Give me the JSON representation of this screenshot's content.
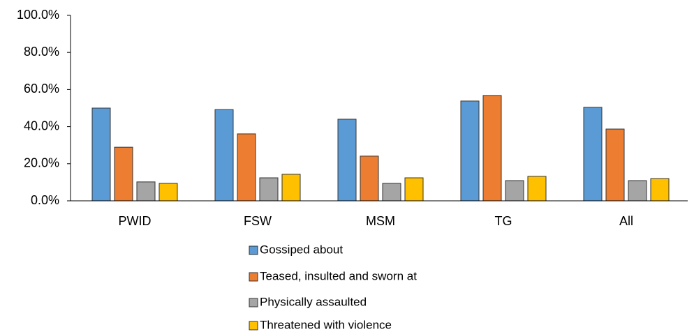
{
  "chart_data": {
    "type": "bar",
    "categories": [
      "PWID",
      "FSW",
      "MSM",
      "TG",
      "All"
    ],
    "series": [
      {
        "name": "Gossiped about",
        "color": "#5b9bd5",
        "values": [
          50.0,
          49.2,
          44.0,
          53.8,
          50.4
        ]
      },
      {
        "name": "Teased, insulted and sworn at",
        "color": "#ed7d31",
        "values": [
          28.9,
          36.1,
          24.1,
          56.8,
          38.7
        ]
      },
      {
        "name": "Physically assaulted",
        "color": "#a5a5a5",
        "values": [
          10.2,
          12.4,
          9.4,
          10.9,
          10.9
        ]
      },
      {
        "name": "Threatened with violence",
        "color": "#ffc000",
        "values": [
          9.4,
          14.3,
          12.4,
          13.2,
          12.0
        ]
      }
    ],
    "ylim": [
      0,
      100
    ],
    "yticks": [
      {
        "value": 0,
        "label": "0.0%"
      },
      {
        "value": 20,
        "label": "20.0%"
      },
      {
        "value": 40,
        "label": "40.0%"
      },
      {
        "value": 60,
        "label": "60.0%"
      },
      {
        "value": 80,
        "label": "80.0%"
      },
      {
        "value": 100,
        "label": "100.0%"
      }
    ],
    "grid": false,
    "legend": "bottom"
  }
}
